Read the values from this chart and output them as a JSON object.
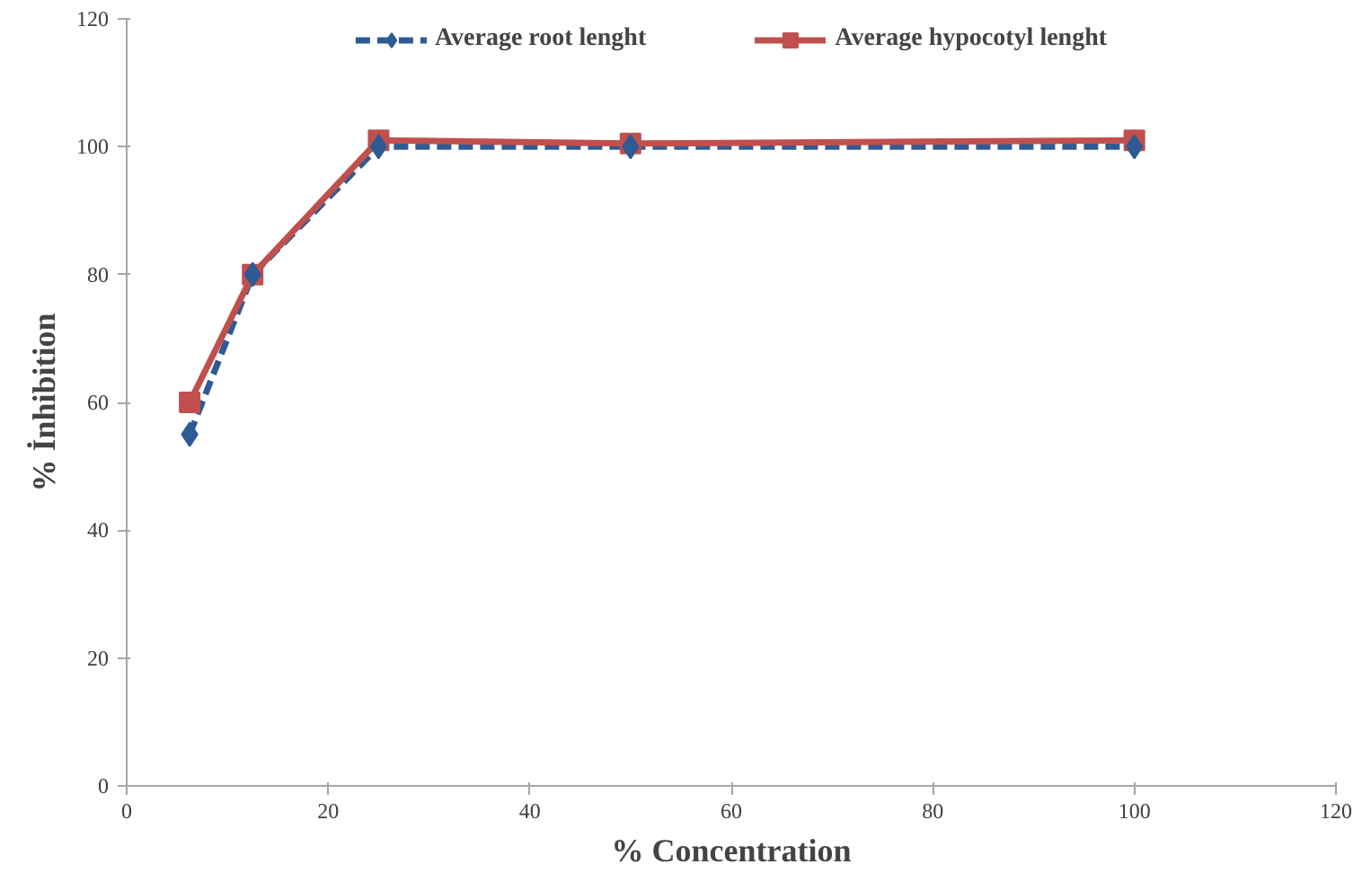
{
  "chart_data": {
    "type": "line",
    "xlabel": "% Concentration",
    "ylabel": "% İnhibition",
    "x": [
      6.25,
      12.5,
      25,
      50,
      100
    ],
    "series": [
      {
        "name": "Average root lenght",
        "color": "#2f5b94",
        "marker": "diamond",
        "line_style": "dashed",
        "values": [
          55,
          80,
          100,
          100,
          100
        ]
      },
      {
        "name": "Average hypocotyl lenght",
        "color": "#c0504d",
        "marker": "square",
        "line_style": "solid",
        "values": [
          60,
          80,
          101,
          100.5,
          101
        ]
      }
    ],
    "xlim": [
      0,
      120
    ],
    "xticks": [
      0,
      20,
      40,
      60,
      80,
      100,
      120
    ],
    "ylim": [
      0,
      120
    ],
    "yticks": [
      0,
      20,
      40,
      60,
      80,
      100,
      120
    ],
    "grid": false,
    "legend": "top"
  }
}
